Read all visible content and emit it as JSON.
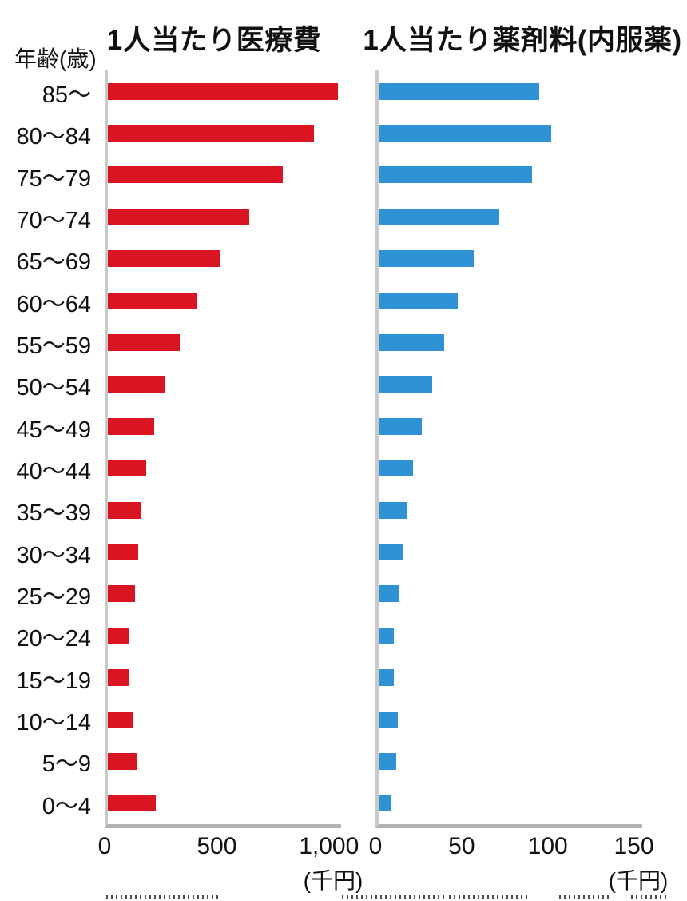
{
  "y_axis_header": "年齢(歳)",
  "chart_data": [
    {
      "type": "bar",
      "orientation": "horizontal",
      "title": "1人当たり医療費",
      "bar_color": "#da1420",
      "bar_name": "medical-cost-bar",
      "categories": [
        "85〜",
        "80〜84",
        "75〜79",
        "70〜74",
        "65〜69",
        "60〜64",
        "55〜59",
        "50〜54",
        "45〜49",
        "40〜44",
        "35〜39",
        "30〜34",
        "25〜29",
        "20〜24",
        "15〜19",
        "10〜14",
        "5〜9",
        "0〜4"
      ],
      "values": [
        1025,
        920,
        780,
        630,
        500,
        400,
        320,
        255,
        205,
        170,
        150,
        135,
        120,
        95,
        95,
        115,
        130,
        215
      ],
      "xlabel": "(千円)",
      "xticks": [
        "0",
        "500",
        "1,000"
      ],
      "xlim": [
        0,
        1040
      ],
      "grid": false,
      "legend": "none"
    },
    {
      "type": "bar",
      "orientation": "horizontal",
      "title": "1人当たり薬剤料(内服薬)",
      "bar_color": "#2e92d5",
      "bar_name": "drug-cost-bar",
      "categories": [
        "85〜",
        "80〜84",
        "75〜79",
        "70〜74",
        "65〜69",
        "60〜64",
        "55〜59",
        "50〜54",
        "45〜49",
        "40〜44",
        "35〜39",
        "30〜34",
        "25〜29",
        "20〜24",
        "15〜19",
        "10〜14",
        "5〜9",
        "0〜4"
      ],
      "values": [
        93,
        100,
        89,
        70,
        55,
        46,
        38,
        31,
        25,
        20,
        16,
        14,
        12,
        9,
        9,
        11,
        10,
        7
      ],
      "xlabel": "(千円)",
      "xticks": [
        "0",
        "50",
        "100",
        "150"
      ],
      "xlim": [
        0,
        153
      ],
      "grid": false,
      "legend": "none"
    }
  ],
  "units": {
    "left": "(千円)",
    "right": "(千円)"
  }
}
